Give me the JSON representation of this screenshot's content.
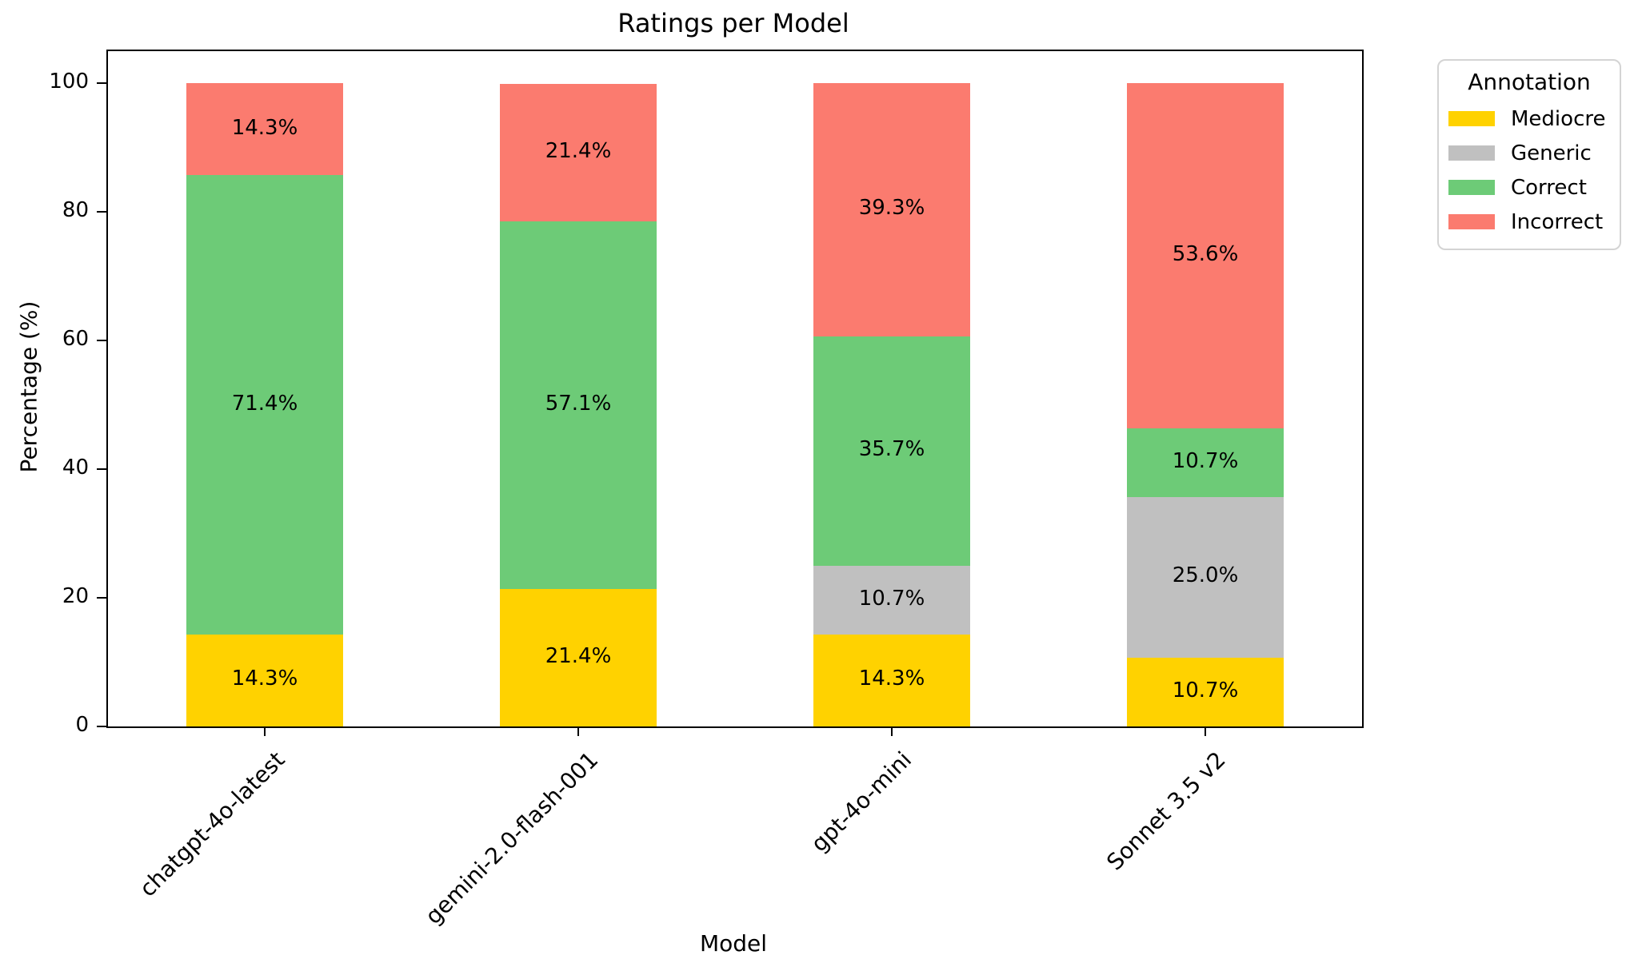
{
  "chart_data": {
    "type": "bar",
    "stacked": true,
    "title": "Ratings per Model",
    "xlabel": "Model",
    "ylabel": "Percentage (%)",
    "categories": [
      "chatgpt-4o-latest",
      "gemini-2.0-flash-001",
      "gpt-4o-mini",
      "Sonnet 3.5 v2"
    ],
    "series": [
      {
        "name": "Mediocre",
        "color": "#FFD200",
        "values": [
          14.3,
          21.4,
          14.3,
          10.7
        ]
      },
      {
        "name": "Generic",
        "color": "#C0C0C0",
        "values": [
          0,
          0,
          10.7,
          25.0
        ]
      },
      {
        "name": "Correct",
        "color": "#6DCB77",
        "values": [
          71.4,
          57.1,
          35.7,
          10.7
        ]
      },
      {
        "name": "Incorrect",
        "color": "#FB7B6F",
        "values": [
          14.3,
          21.4,
          39.3,
          53.6
        ]
      }
    ],
    "bar_labels": [
      "14.3%",
      "21.4%",
      "14.3%",
      "10.7%",
      "10.7%",
      "25.0%",
      "71.4%",
      "57.1%",
      "35.7%",
      "10.7%",
      "14.3%",
      "21.4%",
      "39.3%",
      "53.6%"
    ],
    "bar_label_format": "{:.1f}%",
    "ylim": [
      0,
      105
    ],
    "yticks": [
      0,
      20,
      40,
      60,
      80,
      100
    ],
    "grid": false,
    "legend": {
      "title": "Annotation",
      "position": "outside-upper-right"
    }
  },
  "colors": {
    "spine": "#000000",
    "legend_border": "#d4d4d4",
    "background": "#ffffff"
  }
}
